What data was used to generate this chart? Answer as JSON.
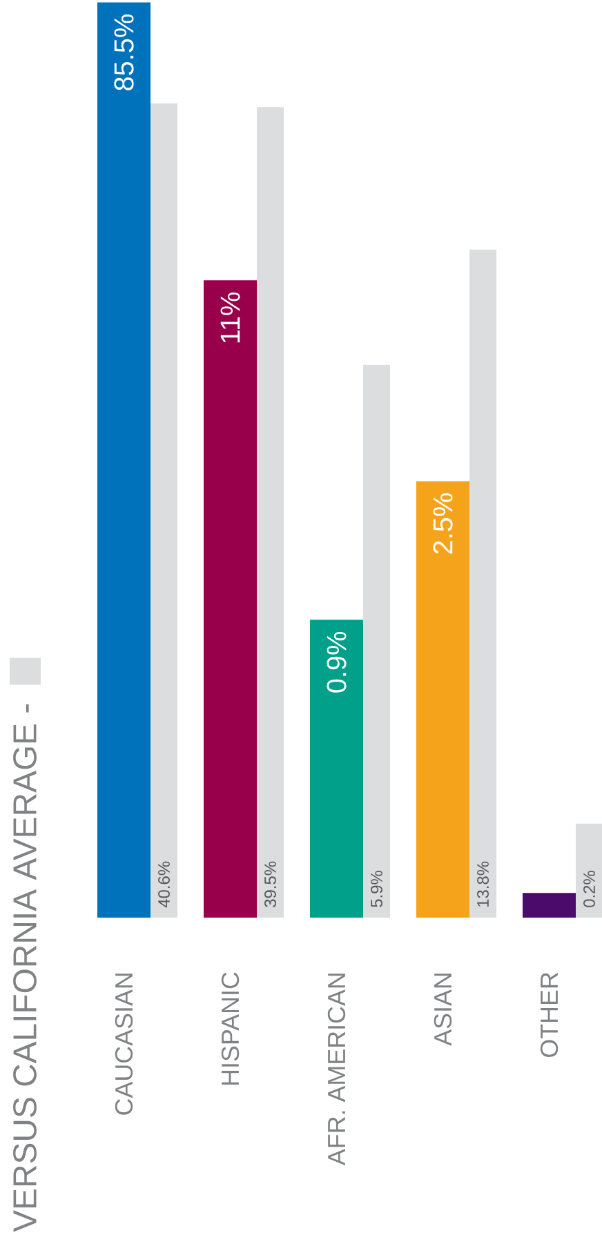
{
  "chart_data": {
    "type": "bar",
    "categories": [
      "CAUCASIAN",
      "HISPANIC",
      "AFR. AMERICAN",
      "ASIAN",
      "OTHER"
    ],
    "series": [
      {
        "colors": [
          "#0072bb",
          "#98004b",
          "#00a08a",
          "#f6a31c",
          "#4a0b6a"
        ],
        "values": [
          85.5,
          11,
          0.9,
          2.5,
          0.12
        ],
        "value_labels": [
          "85.5%",
          "11%",
          "0.9%",
          "2.5%",
          null
        ]
      },
      {
        "name": "VERSUS CALIFORNIA AVERAGE -",
        "color": "#dcdddf",
        "values": [
          40.6,
          39.5,
          5.9,
          13.8,
          0.2
        ],
        "value_labels": [
          "40.6%",
          "39.5%",
          "5.9%",
          "13.8%",
          "0.2%"
        ]
      }
    ],
    "log": true,
    "ylim": [
      0.1,
      85.5
    ],
    "legend": "left",
    "tick_labels": "x"
  }
}
